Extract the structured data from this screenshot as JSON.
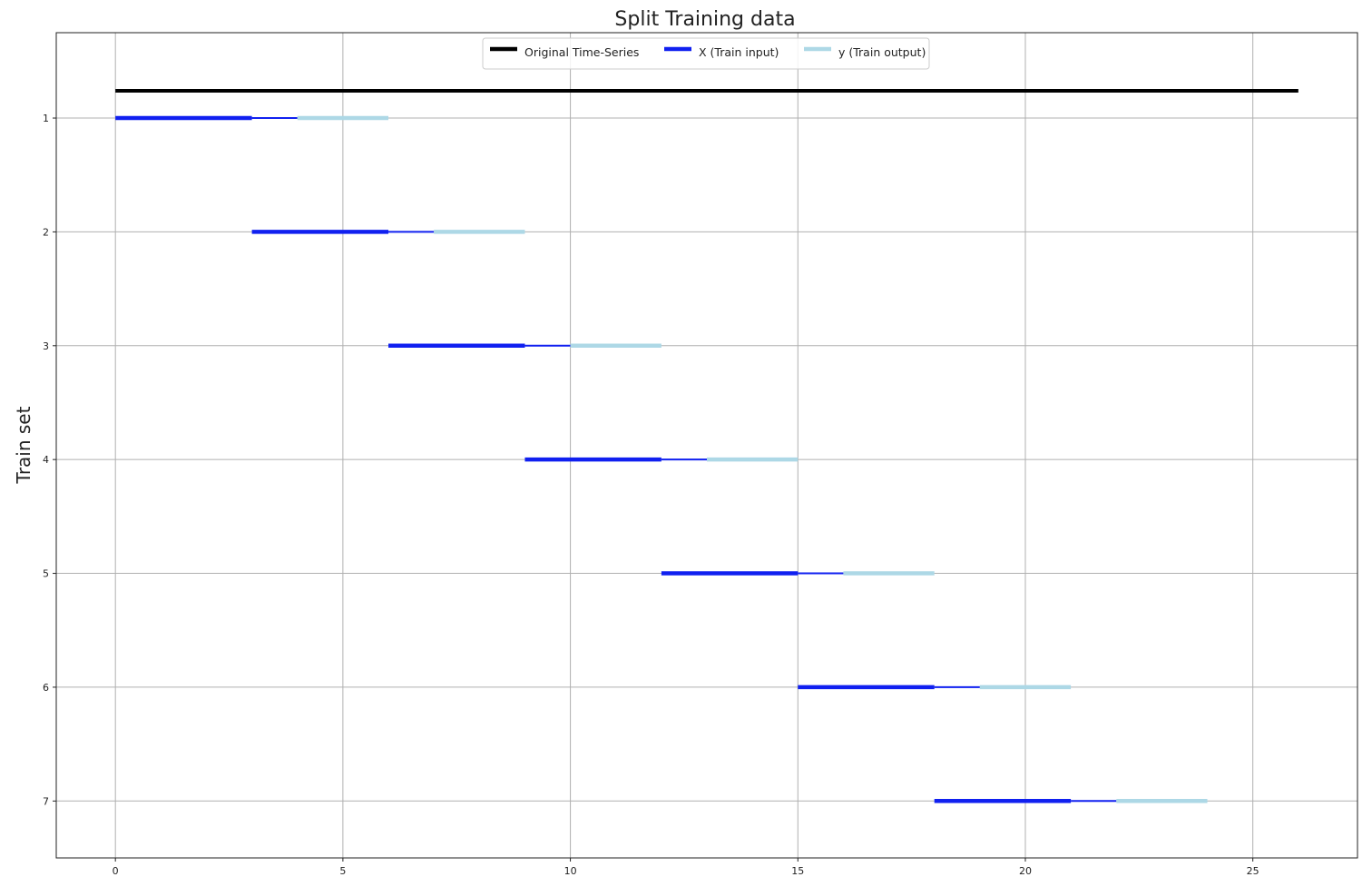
{
  "chart_data": {
    "type": "line",
    "title": "Split Training data",
    "xlabel": "",
    "ylabel": "Train set",
    "xlim": [
      -1.3,
      27.3
    ],
    "ylim": [
      0.25,
      7.5
    ],
    "y_inverted": true,
    "grid": true,
    "x_ticks": [
      0,
      5,
      10,
      15,
      20,
      25
    ],
    "y_ticks": [
      1,
      2,
      3,
      4,
      5,
      6,
      7
    ],
    "legend_placement": "top-center",
    "legend": [
      {
        "label": "Original Time-Series",
        "color": "#000000"
      },
      {
        "label": "X (Train input)",
        "color": "#1020f0"
      },
      {
        "label": "y (Train output)",
        "color": "#add8e6"
      }
    ],
    "original_series": {
      "name": "Original Time-Series",
      "x": [
        0,
        26
      ],
      "y": 0.76,
      "color": "#000000"
    },
    "train_sets": [
      {
        "set": 1,
        "x_input": [
          0,
          3
        ],
        "gap": [
          3,
          4
        ],
        "y_output": [
          4,
          6
        ]
      },
      {
        "set": 2,
        "x_input": [
          3,
          6
        ],
        "gap": [
          6,
          7
        ],
        "y_output": [
          7,
          9
        ]
      },
      {
        "set": 3,
        "x_input": [
          6,
          9
        ],
        "gap": [
          9,
          10
        ],
        "y_output": [
          10,
          12
        ]
      },
      {
        "set": 4,
        "x_input": [
          9,
          12
        ],
        "gap": [
          12,
          13
        ],
        "y_output": [
          13,
          15
        ]
      },
      {
        "set": 5,
        "x_input": [
          12,
          15
        ],
        "gap": [
          15,
          16
        ],
        "y_output": [
          16,
          18
        ]
      },
      {
        "set": 6,
        "x_input": [
          15,
          18
        ],
        "gap": [
          18,
          19
        ],
        "y_output": [
          19,
          21
        ]
      },
      {
        "set": 7,
        "x_input": [
          18,
          21
        ],
        "gap": [
          21,
          22
        ],
        "y_output": [
          22,
          24
        ]
      }
    ],
    "colors": {
      "input": "#1020f0",
      "output": "#add8e6",
      "original": "#000000",
      "grid": "#b0b0b0"
    }
  }
}
